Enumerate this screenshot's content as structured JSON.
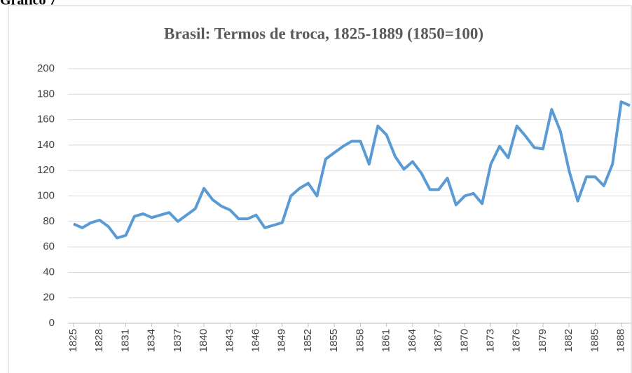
{
  "chart_data": {
    "type": "line",
    "label": "Gráfico 7",
    "title": "Brasil: Termos  de troca, 1825-1889 (1850=100)",
    "x": [
      1825,
      1826,
      1827,
      1828,
      1829,
      1830,
      1831,
      1832,
      1833,
      1834,
      1835,
      1836,
      1837,
      1838,
      1839,
      1840,
      1841,
      1842,
      1843,
      1844,
      1845,
      1846,
      1847,
      1848,
      1849,
      1850,
      1851,
      1852,
      1853,
      1854,
      1855,
      1856,
      1857,
      1858,
      1859,
      1860,
      1861,
      1862,
      1863,
      1864,
      1865,
      1866,
      1867,
      1868,
      1869,
      1870,
      1871,
      1872,
      1873,
      1874,
      1875,
      1876,
      1877,
      1878,
      1879,
      1880,
      1881,
      1882,
      1883,
      1884,
      1885,
      1886,
      1887,
      1888,
      1889
    ],
    "values": [
      78,
      75,
      79,
      81,
      76,
      67,
      69,
      84,
      86,
      83,
      85,
      87,
      80,
      85,
      90,
      106,
      97,
      92,
      89,
      82,
      82,
      85,
      75,
      77,
      79,
      100,
      106,
      110,
      100,
      129,
      134,
      139,
      143,
      143,
      125,
      155,
      148,
      131,
      121,
      127,
      118,
      105,
      105,
      114,
      93,
      100,
      102,
      94,
      125,
      139,
      130,
      155,
      147,
      138,
      137,
      168,
      151,
      120,
      96,
      115,
      115,
      108,
      125,
      174,
      171
    ],
    "color": "#5b9bd5",
    "xlim": [
      1825,
      1889
    ],
    "xticks": [
      1825,
      1828,
      1831,
      1834,
      1837,
      1840,
      1843,
      1846,
      1849,
      1852,
      1855,
      1858,
      1861,
      1864,
      1867,
      1870,
      1873,
      1876,
      1879,
      1882,
      1885,
      1888
    ],
    "ylim": [
      0,
      200
    ],
    "yticks": [
      0,
      20,
      40,
      60,
      80,
      100,
      120,
      140,
      160,
      180,
      200
    ],
    "grid": true
  }
}
